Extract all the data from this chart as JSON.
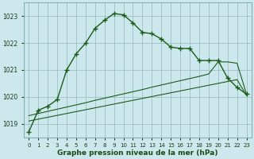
{
  "hours": [
    0,
    1,
    2,
    3,
    4,
    5,
    6,
    7,
    8,
    9,
    10,
    11,
    12,
    13,
    14,
    15,
    16,
    17,
    18,
    19,
    20,
    21,
    22,
    23
  ],
  "pressure_main": [
    1018.7,
    1019.5,
    1019.65,
    1019.9,
    1021.0,
    1021.6,
    1022.0,
    1022.55,
    1022.85,
    1023.1,
    1023.05,
    1022.75,
    1022.4,
    1022.35,
    1022.15,
    1021.85,
    1021.8,
    1021.8,
    1021.35,
    1021.35,
    1021.35,
    1020.7,
    1020.35,
    1020.1
  ],
  "pressure_line_upper": [
    1019.3,
    1019.38,
    1019.46,
    1019.54,
    1019.62,
    1019.7,
    1019.78,
    1019.87,
    1019.95,
    1020.03,
    1020.11,
    1020.19,
    1020.27,
    1020.36,
    1020.44,
    1020.52,
    1020.6,
    1020.68,
    1020.76,
    1020.85,
    1021.3,
    1021.3,
    1021.25,
    1020.1
  ],
  "pressure_line_lower": [
    1019.1,
    1019.17,
    1019.24,
    1019.31,
    1019.38,
    1019.45,
    1019.52,
    1019.59,
    1019.66,
    1019.73,
    1019.8,
    1019.87,
    1019.94,
    1020.01,
    1020.08,
    1020.15,
    1020.22,
    1020.29,
    1020.36,
    1020.43,
    1020.5,
    1020.57,
    1020.64,
    1020.05
  ],
  "bg_color": "#cce8ec",
  "grid_color": "#9dbfc4",
  "line_color": "#1a5c1a",
  "ylim_min": 1018.5,
  "ylim_max": 1023.5,
  "ytick_step": 1,
  "yticks": [
    1019,
    1020,
    1021,
    1022,
    1023
  ],
  "xlabel": "Graphe pression niveau de la mer (hPa)",
  "xlabel_fontsize": 6.5,
  "xlabel_color": "#1a4a1a",
  "tick_fontsize": 5.5,
  "tick_color": "#1a3a1a",
  "figsize": [
    3.2,
    2.0
  ],
  "dpi": 100
}
